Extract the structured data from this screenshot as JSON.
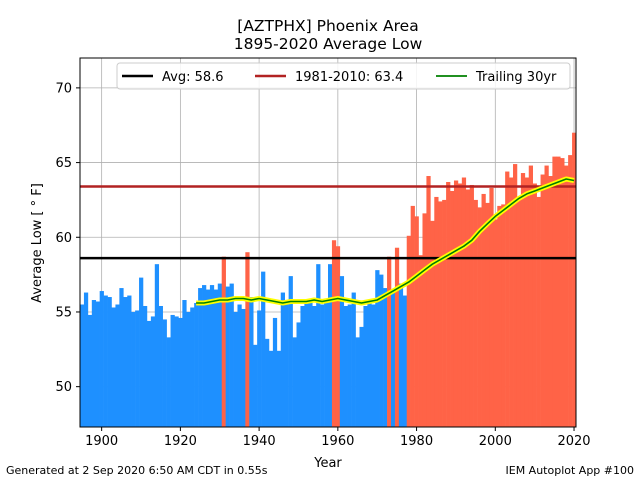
{
  "footer": {
    "left": "Generated at 2 Sep 2020 6:50 AM CDT in 0.55s",
    "right": "IEM Autoplot App #100"
  },
  "chart_data": {
    "type": "bar",
    "title": "[AZTPHX] Phoenix Area",
    "subtitle": "1895-2020 Average Low",
    "xlabel": "Year",
    "ylabel": "Average Low [$^\\circ$F]",
    "ylabel_display": "Average Low [ ° F]",
    "xlim": [
      1894.5,
      2020.5
    ],
    "ylim": [
      47.3,
      72.0
    ],
    "xticks": [
      1900,
      1920,
      1940,
      1960,
      1980,
      2000,
      2020
    ],
    "yticks": [
      50,
      55,
      60,
      65,
      70
    ],
    "grid": true,
    "legend_position": "top",
    "colors": {
      "below_avg": "#1E90FF",
      "above_avg": "#FF6347",
      "avg_line": "#000000",
      "normal_line": "#B22222",
      "trailing_line": "#008000",
      "trailing_halo": "#FFFF00"
    },
    "reference_lines": [
      {
        "name": "Avg: 58.6",
        "value": 58.6
      },
      {
        "name": "1981-2010: 63.4",
        "value": 63.4
      }
    ],
    "trailing_name": "Trailing 30yr",
    "years": [
      1895,
      1896,
      1897,
      1898,
      1899,
      1900,
      1901,
      1902,
      1903,
      1904,
      1905,
      1906,
      1907,
      1908,
      1909,
      1910,
      1911,
      1912,
      1913,
      1914,
      1915,
      1916,
      1917,
      1918,
      1919,
      1920,
      1921,
      1922,
      1923,
      1924,
      1925,
      1926,
      1927,
      1928,
      1929,
      1930,
      1931,
      1932,
      1933,
      1934,
      1935,
      1936,
      1937,
      1938,
      1939,
      1940,
      1941,
      1942,
      1943,
      1944,
      1945,
      1946,
      1947,
      1948,
      1949,
      1950,
      1951,
      1952,
      1953,
      1954,
      1955,
      1956,
      1957,
      1958,
      1959,
      1960,
      1961,
      1962,
      1963,
      1964,
      1965,
      1966,
      1967,
      1968,
      1969,
      1970,
      1971,
      1972,
      1973,
      1974,
      1975,
      1976,
      1977,
      1978,
      1979,
      1980,
      1981,
      1982,
      1983,
      1984,
      1985,
      1986,
      1987,
      1988,
      1989,
      1990,
      1991,
      1992,
      1993,
      1994,
      1995,
      1996,
      1997,
      1998,
      1999,
      2000,
      2001,
      2002,
      2003,
      2004,
      2005,
      2006,
      2007,
      2008,
      2009,
      2010,
      2011,
      2012,
      2013,
      2014,
      2015,
      2016,
      2017,
      2018,
      2019,
      2020
    ],
    "values": [
      55.5,
      56.3,
      54.8,
      55.8,
      55.7,
      56.4,
      56.1,
      56.0,
      55.3,
      55.5,
      56.6,
      56.0,
      56.1,
      55.0,
      55.1,
      57.3,
      55.4,
      54.4,
      54.7,
      58.2,
      55.4,
      54.5,
      53.3,
      54.8,
      54.7,
      54.6,
      55.8,
      55.0,
      55.3,
      55.6,
      56.6,
      56.8,
      56.5,
      56.8,
      56.5,
      56.9,
      58.7,
      56.7,
      56.9,
      55.0,
      55.5,
      55.2,
      59.0,
      56.0,
      52.8,
      55.1,
      57.7,
      53.2,
      52.4,
      54.6,
      52.4,
      56.3,
      55.6,
      57.4,
      53.3,
      54.3,
      55.4,
      55.8,
      55.6,
      55.4,
      58.2,
      55.5,
      55.8,
      58.2,
      59.8,
      59.4,
      57.4,
      55.4,
      55.5,
      56.3,
      53.3,
      54.0,
      55.4,
      55.6,
      55.5,
      57.8,
      57.5,
      56.6,
      58.7,
      56.4,
      59.3,
      56.9,
      56.1,
      60.1,
      62.1,
      61.4,
      58.8,
      61.6,
      64.1,
      61.1,
      62.7,
      62.4,
      62.5,
      63.7,
      63.1,
      63.8,
      63.6,
      64.0,
      63.2,
      63.5,
      62.5,
      62.0,
      62.9,
      62.3,
      63.3,
      61.2,
      62.1,
      62.2,
      64.4,
      64.0,
      64.9,
      62.7,
      64.3,
      64.0,
      64.8,
      63.6,
      62.7,
      64.2,
      64.8,
      64.1,
      65.4,
      65.4,
      65.3,
      64.8,
      65.5,
      67.0
    ],
    "trailing_30yr": {
      "x": [
        1924,
        1926,
        1928,
        1930,
        1932,
        1934,
        1936,
        1938,
        1940,
        1942,
        1944,
        1946,
        1948,
        1950,
        1952,
        1954,
        1956,
        1958,
        1960,
        1962,
        1964,
        1966,
        1968,
        1970,
        1972,
        1974,
        1976,
        1978,
        1980,
        1982,
        1984,
        1986,
        1988,
        1990,
        1992,
        1994,
        1996,
        1998,
        2000,
        2002,
        2004,
        2006,
        2008,
        2010,
        2012,
        2014,
        2016,
        2018,
        2020
      ],
      "y": [
        55.6,
        55.6,
        55.7,
        55.8,
        55.8,
        55.9,
        55.9,
        55.8,
        55.9,
        55.8,
        55.7,
        55.6,
        55.7,
        55.7,
        55.7,
        55.8,
        55.7,
        55.8,
        55.9,
        55.8,
        55.7,
        55.6,
        55.7,
        55.8,
        56.1,
        56.4,
        56.7,
        57.0,
        57.4,
        57.8,
        58.2,
        58.5,
        58.8,
        59.1,
        59.4,
        59.8,
        60.4,
        60.9,
        61.4,
        61.8,
        62.2,
        62.6,
        62.9,
        63.1,
        63.3,
        63.5,
        63.7,
        63.9,
        63.8
      ]
    }
  }
}
